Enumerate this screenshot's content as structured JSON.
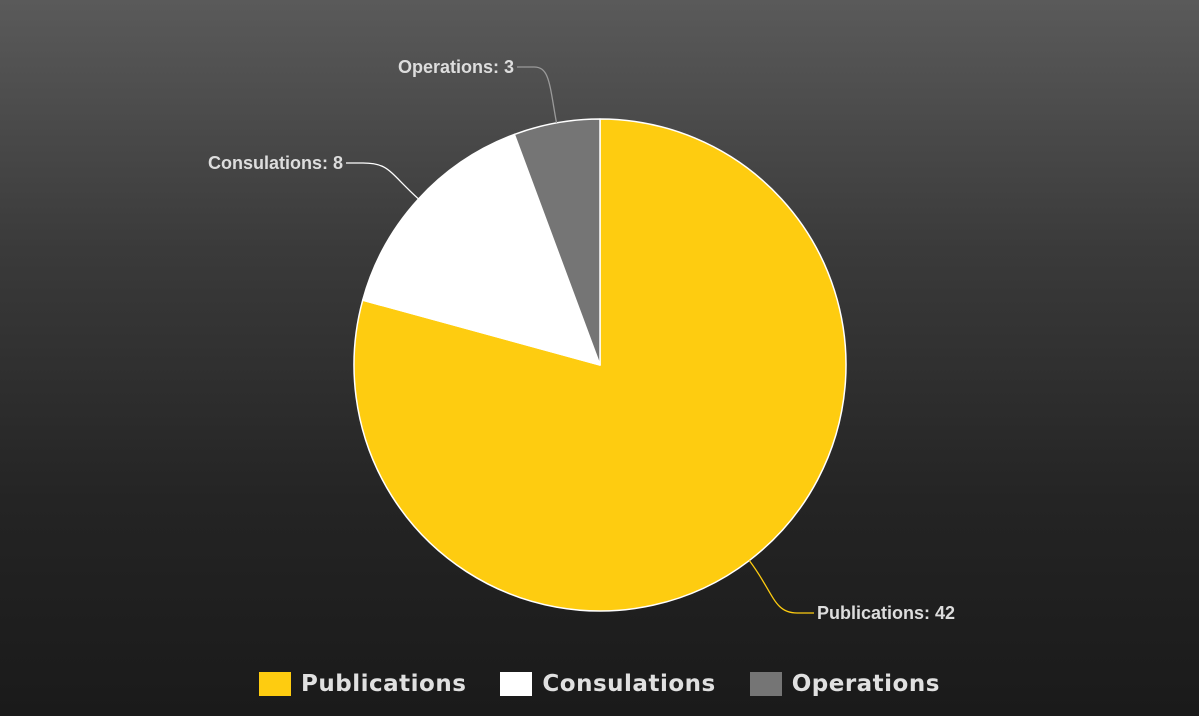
{
  "chart_data": {
    "type": "pie",
    "title": "",
    "categories": [
      "Publications",
      "Consulations",
      "Operations"
    ],
    "values": [
      42,
      8,
      3
    ],
    "colors": [
      "#fecc10",
      "#ffffff",
      "#757575"
    ],
    "data_labels": [
      "Publications: 42",
      "Consulations: 8",
      "Operations: 3"
    ],
    "legend": {
      "position": "bottom",
      "entries": [
        "Publications",
        "Consulations",
        "Operations"
      ]
    }
  }
}
